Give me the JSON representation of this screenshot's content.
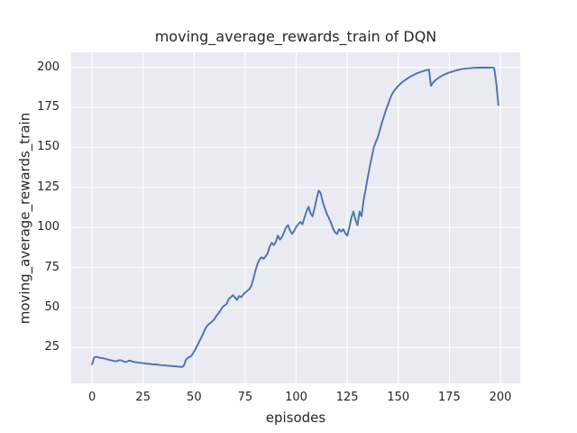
{
  "figure": {
    "title": "moving_average_rewards_train of DQN",
    "xlabel": "episodes",
    "ylabel": "moving_average_rewards_train"
  },
  "colors": {
    "figure_background": "#ffffff",
    "axes_background": "#eaeaf2",
    "grid": "#ffffff",
    "line": "#4c72b0",
    "text": "#262626"
  },
  "chart_data": {
    "type": "line",
    "title": "moving_average_rewards_train of DQN",
    "xlabel": "episodes",
    "ylabel": "moving_average_rewards_train",
    "grid": true,
    "legend_position": "none",
    "xlim": [
      -10.2,
      209.7
    ],
    "ylim": [
      2.7,
      209.4
    ],
    "xticks": [
      0,
      25,
      50,
      75,
      100,
      125,
      150,
      175,
      200
    ],
    "yticks": [
      25,
      50,
      75,
      100,
      125,
      150,
      175,
      200
    ],
    "series": [
      {
        "name": "moving_average_rewards_train",
        "color": "#4c72b0",
        "x_start": 0,
        "x_step": 1,
        "values": [
          14.5,
          18.8,
          19.3,
          19.0,
          18.6,
          18.5,
          18.2,
          17.9,
          17.5,
          17.2,
          17.0,
          16.6,
          16.5,
          17.1,
          17.2,
          16.8,
          16.0,
          16.2,
          16.9,
          16.7,
          16.2,
          16.0,
          15.8,
          15.6,
          15.5,
          15.3,
          15.2,
          15.0,
          14.9,
          14.7,
          14.6,
          14.5,
          14.4,
          14.2,
          14.1,
          14.0,
          13.9,
          13.7,
          13.6,
          13.5,
          13.4,
          13.3,
          13.2,
          13.1,
          12.9,
          13.8,
          17.5,
          18.8,
          19.2,
          20.5,
          22.5,
          25.0,
          27.5,
          30.0,
          32.5,
          35.5,
          38.0,
          39.5,
          40.5,
          41.5,
          43.0,
          45.0,
          46.5,
          48.5,
          50.5,
          51.5,
          52.5,
          55.5,
          56.5,
          57.8,
          56.3,
          54.8,
          57.3,
          56.5,
          58.0,
          59.5,
          60.5,
          61.5,
          63.5,
          68.0,
          73.0,
          77.0,
          80.0,
          81.5,
          80.5,
          82.0,
          84.0,
          88.0,
          90.5,
          89.0,
          91.0,
          95.0,
          92.5,
          94.0,
          97.0,
          100.0,
          101.5,
          98.0,
          96.0,
          98.0,
          100.5,
          102.0,
          103.5,
          102.0,
          106.0,
          110.0,
          113.0,
          109.0,
          107.0,
          112.0,
          118.0,
          123.0,
          121.5,
          116.0,
          112.0,
          108.5,
          106.0,
          103.0,
          99.5,
          97.0,
          96.0,
          99.0,
          97.5,
          99.0,
          96.5,
          95.0,
          100.0,
          106.0,
          110.0,
          105.0,
          101.5,
          110.0,
          107.0,
          117.0,
          124.0,
          131.0,
          138.0,
          144.0,
          150.0,
          153.5,
          156.5,
          161.0,
          165.5,
          169.5,
          173.5,
          177.0,
          180.5,
          183.5,
          185.5,
          187.0,
          188.5,
          189.7,
          190.8,
          191.8,
          192.7,
          193.5,
          194.3,
          195.0,
          195.6,
          196.2,
          196.7,
          197.2,
          197.6,
          198.0,
          198.3,
          198.6,
          188.5,
          190.5,
          191.8,
          192.8,
          193.7,
          194.5,
          195.2,
          195.8,
          196.3,
          196.8,
          197.2,
          197.6,
          198.0,
          198.3,
          198.6,
          198.9,
          199.1,
          199.3,
          199.4,
          199.5,
          199.6,
          199.7,
          199.7,
          199.8,
          199.8,
          199.8,
          199.8,
          199.8,
          199.9,
          199.9,
          199.9,
          199.5,
          190.0,
          176.5
        ]
      }
    ]
  }
}
